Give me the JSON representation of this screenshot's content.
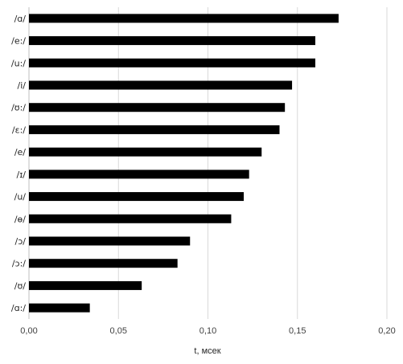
{
  "chart_data": {
    "type": "bar",
    "orientation": "horizontal",
    "categories": [
      "/ɑ/",
      "/e:/",
      "/u:/",
      "/i/",
      "/ʊ:/",
      "/ɛ:/",
      "/e/",
      "/ɪ/",
      "/u/",
      "/ɵ/",
      "/ɔ/",
      "/ɔ:/",
      "/ʊ/",
      "/ɑ:/"
    ],
    "values": [
      0.173,
      0.16,
      0.16,
      0.147,
      0.143,
      0.14,
      0.13,
      0.123,
      0.12,
      0.113,
      0.09,
      0.083,
      0.063,
      0.034
    ],
    "xlabel": "t, мсек",
    "ylabel": "",
    "xlim": [
      0,
      0.2
    ],
    "xticks": [
      "0,00",
      "0,05",
      "0,10",
      "0,15",
      "0,20"
    ],
    "grid": true,
    "legend": "none",
    "colors": {
      "bar": "#000000",
      "grid": "#d9d9d9",
      "axis": "#bfbfbf"
    }
  }
}
